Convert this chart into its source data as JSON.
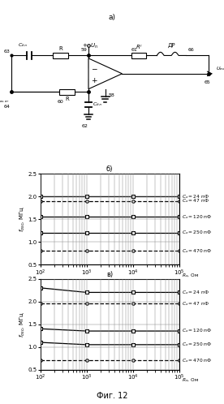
{
  "colors": {
    "line": "#000000",
    "grid": "#aaaaaa",
    "bg": "#ffffff"
  },
  "graph_b": {
    "series_b": [
      {
        "y": [
          2.0,
          2.0,
          2.0,
          2.0
        ],
        "style": "-",
        "marker": "s",
        "label": "C_x = 24 пФ"
      },
      {
        "y": [
          1.9,
          1.9,
          1.9,
          1.9
        ],
        "style": "--",
        "marker": "o",
        "label": "C_x = 47 пФ"
      },
      {
        "y": [
          1.55,
          1.55,
          1.55,
          1.55
        ],
        "style": "-",
        "marker": "s",
        "label": "C_x = 120 пФ"
      },
      {
        "y": [
          1.2,
          1.2,
          1.2,
          1.2
        ],
        "style": "-",
        "marker": "s",
        "label": "C_x = 250 пФ"
      },
      {
        "y": [
          0.8,
          0.8,
          0.8,
          0.8
        ],
        "style": "--",
        "marker": "o",
        "label": "C_x = 470 пФ"
      }
    ]
  },
  "graph_v": {
    "series_v": [
      {
        "y": [
          2.3,
          2.2,
          2.2,
          2.2
        ],
        "style": "-",
        "marker": "s",
        "label": "C_x = 24 пФ"
      },
      {
        "y": [
          1.95,
          1.95,
          1.95,
          1.95
        ],
        "style": "--",
        "marker": "o",
        "label": "C_x = 47 пФ"
      },
      {
        "y": [
          1.4,
          1.35,
          1.35,
          1.35
        ],
        "style": "-",
        "marker": "s",
        "label": "C_x = 120 пФ"
      },
      {
        "y": [
          1.1,
          1.05,
          1.05,
          1.05
        ],
        "style": "-",
        "marker": "s",
        "label": "C_x = 250 пФ"
      },
      {
        "y": [
          0.7,
          0.7,
          0.7,
          0.7
        ],
        "style": "--",
        "marker": "o",
        "label": "C_x = 470 пФ"
      }
    ]
  }
}
